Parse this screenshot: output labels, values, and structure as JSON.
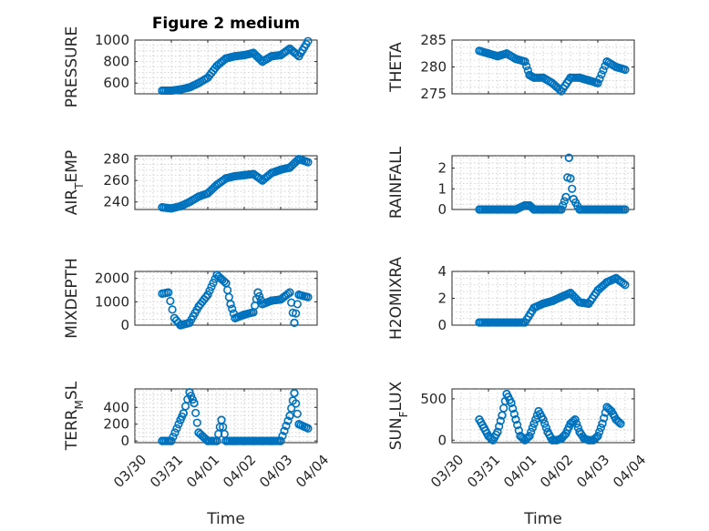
{
  "figure_title": "Figure 2 medium",
  "x_label": "Time",
  "colors": {
    "marker": "#0072bd",
    "axes": "#262626",
    "grid": "#c8c8c8"
  },
  "chart_data": [
    {
      "type": "scatter",
      "ylabel": "PRESSURE",
      "ylabel_parts": [
        {
          "t": "PRESSURE",
          "s": false
        }
      ],
      "ylim": [
        500,
        1000
      ],
      "yticks": [
        600,
        800,
        1000
      ],
      "xlim": [
        "03/30",
        "04/04"
      ],
      "xtick_labels": [
        "03/30",
        "03/31",
        "04/01",
        "04/02",
        "04/03",
        "04/04"
      ],
      "grid": true,
      "x": [
        "03/30 18:00",
        "03/31 00:00",
        "03/31 06:00",
        "03/31 12:00",
        "03/31 18:00",
        "04/01 00:00",
        "04/01 06:00",
        "04/01 12:00",
        "04/01 18:00",
        "04/02 00:00",
        "04/02 06:00",
        "04/02 12:00",
        "04/02 18:00",
        "04/03 00:00",
        "04/03 06:00",
        "04/03 12:00",
        "04/03 18:00"
      ],
      "y": [
        530,
        530,
        540,
        560,
        600,
        650,
        760,
        830,
        850,
        860,
        880,
        800,
        850,
        860,
        920,
        850,
        990
      ]
    },
    {
      "type": "scatter",
      "ylabel": "THETA",
      "ylabel_parts": [
        {
          "t": "THETA",
          "s": false
        }
      ],
      "ylim": [
        275,
        285
      ],
      "yticks": [
        275,
        280,
        285
      ],
      "xlim": [
        "03/30",
        "04/04"
      ],
      "xtick_labels": [
        "03/30",
        "03/31",
        "04/01",
        "04/02",
        "04/03",
        "04/04"
      ],
      "grid": true,
      "x": [
        "03/30 18:00",
        "03/31 00:00",
        "03/31 06:00",
        "03/31 12:00",
        "03/31 18:00",
        "04/01 00:00",
        "04/01 03:00",
        "04/01 06:00",
        "04/01 12:00",
        "04/01 18:00",
        "04/02 00:00",
        "04/02 06:00",
        "04/02 12:00",
        "04/02 18:00",
        "04/03 00:00",
        "04/03 06:00",
        "04/03 12:00",
        "04/03 18:00"
      ],
      "y": [
        283,
        282.5,
        282,
        282.5,
        281.5,
        281,
        278.5,
        278,
        278,
        277,
        275.5,
        278,
        278,
        277.5,
        277,
        281,
        280,
        279.5
      ]
    },
    {
      "type": "scatter",
      "ylabel": "AIR_TEMP",
      "ylabel_parts": [
        {
          "t": "AIR",
          "s": false
        },
        {
          "t": "T",
          "s": true
        },
        {
          "t": "EMP",
          "s": false
        }
      ],
      "ylim": [
        233,
        283
      ],
      "yticks": [
        240,
        260,
        280
      ],
      "xlim": [
        "03/30",
        "04/04"
      ],
      "xtick_labels": [
        "03/30",
        "03/31",
        "04/01",
        "04/02",
        "04/03",
        "04/04"
      ],
      "grid": true,
      "x": [
        "03/30 18:00",
        "03/31 00:00",
        "03/31 06:00",
        "03/31 12:00",
        "03/31 18:00",
        "04/01 00:00",
        "04/01 06:00",
        "04/01 12:00",
        "04/01 18:00",
        "04/02 00:00",
        "04/02 06:00",
        "04/02 12:00",
        "04/02 18:00",
        "04/03 00:00",
        "04/03 06:00",
        "04/03 12:00",
        "04/03 18:00"
      ],
      "y": [
        235,
        234,
        236,
        240,
        245,
        248,
        256,
        262,
        264,
        265,
        266,
        260,
        267,
        270,
        272,
        280,
        277
      ]
    },
    {
      "type": "scatter",
      "ylabel": "RAINFALL",
      "ylabel_parts": [
        {
          "t": "RAINFALL",
          "s": false
        }
      ],
      "ylim": [
        0,
        2.6
      ],
      "yticks": [
        0,
        1,
        2
      ],
      "xlim": [
        "03/30",
        "04/04"
      ],
      "xtick_labels": [
        "03/30",
        "03/31",
        "04/01",
        "04/02",
        "04/03",
        "04/04"
      ],
      "grid": true,
      "x": [
        "03/30 18:00",
        "03/31 00:00",
        "03/31 06:00",
        "03/31 12:00",
        "03/31 18:00",
        "04/01 00:00",
        "04/01 03:00",
        "04/01 06:00",
        "04/01 12:00",
        "04/01 18:00",
        "04/02 00:00",
        "04/02 03:00",
        "04/02 05:00",
        "04/02 06:00",
        "04/02 08:00",
        "04/02 12:00",
        "04/02 18:00",
        "04/03 00:00",
        "04/03 06:00",
        "04/03 12:00",
        "04/03 18:00"
      ],
      "y": [
        0,
        0,
        0,
        0,
        0,
        0.2,
        0.2,
        0,
        0,
        0,
        0,
        0.6,
        2.5,
        1.5,
        0.5,
        0,
        0,
        0,
        0,
        0,
        0
      ]
    },
    {
      "type": "scatter",
      "ylabel": "MIXDEPTH",
      "ylabel_parts": [
        {
          "t": "MIXDEPTH",
          "s": false
        }
      ],
      "ylim": [
        0,
        2300
      ],
      "yticks": [
        0,
        1000,
        2000
      ],
      "xlim": [
        "03/30",
        "04/04"
      ],
      "xtick_labels": [
        "03/30",
        "03/31",
        "04/01",
        "04/02",
        "04/03",
        "04/04"
      ],
      "grid": true,
      "x": [
        "03/30 18:00",
        "03/30 22:00",
        "03/31 02:00",
        "03/31 06:00",
        "03/31 12:00",
        "03/31 18:00",
        "04/01 00:00",
        "04/01 06:00",
        "04/01 12:00",
        "04/01 15:00",
        "04/01 18:00",
        "04/02 00:00",
        "04/02 06:00",
        "04/02 09:00",
        "04/02 12:00",
        "04/02 18:00",
        "04/03 00:00",
        "04/03 06:00",
        "04/03 09:00",
        "04/03 12:00",
        "04/03 18:00"
      ],
      "y": [
        1350,
        1400,
        300,
        0,
        100,
        800,
        1300,
        2150,
        1800,
        900,
        300,
        450,
        550,
        1400,
        900,
        1050,
        1100,
        1400,
        100,
        1300,
        1200
      ]
    },
    {
      "type": "scatter",
      "ylabel": "H2OMIXRA",
      "ylabel_parts": [
        {
          "t": "H2OMIXRA",
          "s": false
        }
      ],
      "ylim": [
        0,
        4
      ],
      "yticks": [
        0,
        2,
        4
      ],
      "xlim": [
        "03/30",
        "04/04"
      ],
      "xtick_labels": [
        "03/30",
        "03/31",
        "04/01",
        "04/02",
        "04/03",
        "04/04"
      ],
      "grid": true,
      "x": [
        "03/30 18:00",
        "03/31 00:00",
        "03/31 06:00",
        "03/31 12:00",
        "03/31 18:00",
        "04/01 00:00",
        "04/01 06:00",
        "04/01 12:00",
        "04/01 18:00",
        "04/02 00:00",
        "04/02 06:00",
        "04/02 12:00",
        "04/02 18:00",
        "04/03 00:00",
        "04/03 06:00",
        "04/03 12:00",
        "04/03 18:00"
      ],
      "y": [
        0.2,
        0.2,
        0.2,
        0.2,
        0.2,
        0.2,
        1.3,
        1.6,
        1.8,
        2.1,
        2.4,
        1.7,
        1.6,
        2.6,
        3.2,
        3.5,
        3.0
      ]
    },
    {
      "type": "scatter",
      "ylabel": "TERR_MSL",
      "ylabel_parts": [
        {
          "t": "TERR",
          "s": false
        },
        {
          "t": "M",
          "s": true
        },
        {
          "t": "SL",
          "s": false
        }
      ],
      "ylim": [
        -20,
        620
      ],
      "yticks": [
        0,
        200,
        400
      ],
      "xlim": [
        "03/30",
        "04/04"
      ],
      "xtick_labels": [
        "03/30",
        "03/31",
        "04/01",
        "04/02",
        "04/03",
        "04/04"
      ],
      "grid": true,
      "x": [
        "03/30 18:00",
        "03/31 00:00",
        "03/31 06:00",
        "03/31 08:00",
        "03/31 12:00",
        "03/31 15:00",
        "03/31 18:00",
        "04/01 00:00",
        "04/01 06:00",
        "04/01 09:00",
        "04/01 12:00",
        "04/01 18:00",
        "04/02 00:00",
        "04/02 06:00",
        "04/02 12:00",
        "04/02 18:00",
        "04/03 00:00",
        "04/03 06:00",
        "04/03 09:00",
        "04/03 12:00",
        "04/03 18:00"
      ],
      "y": [
        0,
        0,
        250,
        330,
        580,
        450,
        100,
        0,
        0,
        250,
        0,
        0,
        0,
        0,
        0,
        0,
        0,
        300,
        570,
        200,
        150
      ]
    },
    {
      "type": "scatter",
      "ylabel": "SUN_FLUX",
      "ylabel_parts": [
        {
          "t": "SUN",
          "s": false
        },
        {
          "t": "F",
          "s": true
        },
        {
          "t": "LUX",
          "s": false
        }
      ],
      "ylim": [
        -30,
        620
      ],
      "yticks": [
        0,
        500
      ],
      "xlim": [
        "03/30",
        "04/04"
      ],
      "xtick_labels": [
        "03/30",
        "03/31",
        "04/01",
        "04/02",
        "04/03",
        "04/04"
      ],
      "grid": true,
      "x": [
        "03/30 18:00",
        "03/30 21:00",
        "03/31 00:00",
        "03/31 03:00",
        "03/31 06:00",
        "03/31 09:00",
        "03/31 12:00",
        "03/31 15:00",
        "03/31 18:00",
        "03/31 21:00",
        "04/01 00:00",
        "04/01 03:00",
        "04/01 06:00",
        "04/01 09:00",
        "04/01 12:00",
        "04/01 15:00",
        "04/01 18:00",
        "04/01 21:00",
        "04/02 00:00",
        "04/02 03:00",
        "04/02 06:00",
        "04/02 09:00",
        "04/02 12:00",
        "04/02 15:00",
        "04/02 18:00",
        "04/02 21:00",
        "04/03 00:00",
        "04/03 03:00",
        "04/03 06:00",
        "04/03 09:00",
        "04/03 12:00",
        "04/03 15:00"
      ],
      "y": [
        250,
        150,
        50,
        0,
        100,
        300,
        560,
        450,
        250,
        50,
        0,
        50,
        200,
        350,
        250,
        100,
        0,
        0,
        20,
        80,
        200,
        250,
        100,
        20,
        0,
        0,
        50,
        200,
        400,
        350,
        250,
        200
      ]
    }
  ]
}
